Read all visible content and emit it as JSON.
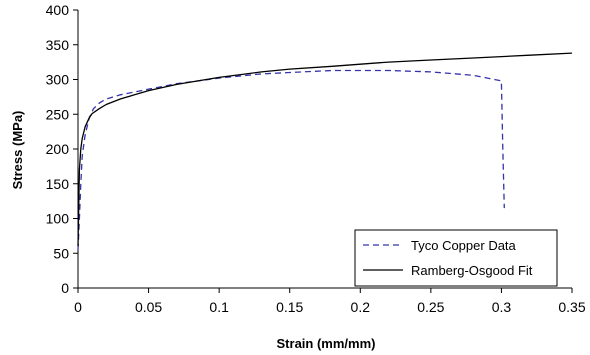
{
  "chart_data": {
    "type": "line",
    "title": "",
    "xlabel": "Strain (mm/mm)",
    "ylabel": "Stress (MPa)",
    "xlim": [
      0,
      0.35
    ],
    "ylim": [
      0,
      400
    ],
    "xticks": [
      0,
      0.05,
      0.1,
      0.15,
      0.2,
      0.25,
      0.3,
      0.35
    ],
    "xtick_labels": [
      "0",
      "0.05",
      "0.1",
      "0.15",
      "0.2",
      "0.25",
      "0.3",
      "0.35"
    ],
    "yticks": [
      0,
      50,
      100,
      150,
      200,
      250,
      300,
      350,
      400
    ],
    "ytick_labels": [
      "0",
      "50",
      "100",
      "150",
      "200",
      "250",
      "300",
      "350",
      "400"
    ],
    "grid": false,
    "legend_position": "bottom-right",
    "series": [
      {
        "name": "Tyco Copper Data",
        "style": "dashed",
        "color": "#3333aa",
        "x": [
          0,
          0.001,
          0.002,
          0.003,
          0.005,
          0.008,
          0.011,
          0.015,
          0.02,
          0.03,
          0.04,
          0.05,
          0.07,
          0.1,
          0.13,
          0.15,
          0.18,
          0.2,
          0.22,
          0.25,
          0.28,
          0.295,
          0.3,
          0.301,
          0.302
        ],
        "y": [
          55,
          100,
          150,
          190,
          220,
          245,
          258,
          266,
          272,
          278,
          282,
          286,
          294,
          302,
          308,
          310,
          313,
          313,
          313,
          311,
          306,
          300,
          298,
          200,
          115
        ]
      },
      {
        "name": "Ramberg-Osgood Fit",
        "style": "solid",
        "color": "#000000",
        "x": [
          0,
          0.001,
          0.002,
          0.003,
          0.005,
          0.008,
          0.01,
          0.015,
          0.02,
          0.03,
          0.04,
          0.05,
          0.07,
          0.1,
          0.13,
          0.15,
          0.18,
          0.2,
          0.22,
          0.25,
          0.28,
          0.3,
          0.32,
          0.35
        ],
        "y": [
          60,
          170,
          200,
          215,
          232,
          245,
          251,
          258,
          264,
          272,
          278,
          284,
          293,
          303,
          311,
          315,
          319,
          322,
          325,
          328,
          331,
          333,
          335,
          338
        ]
      }
    ]
  }
}
